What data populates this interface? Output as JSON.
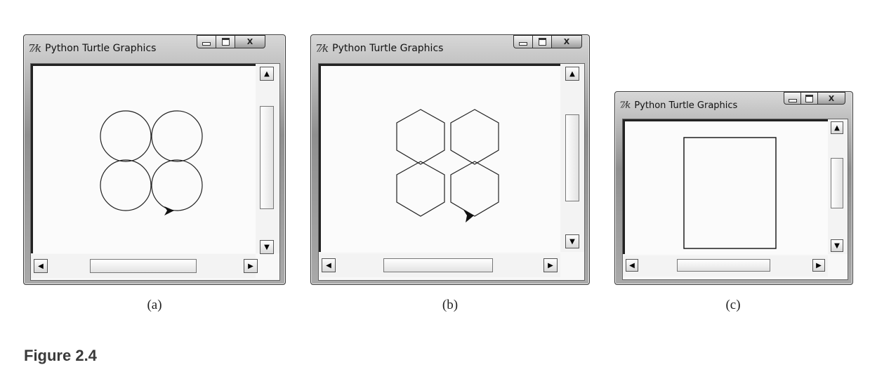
{
  "windows": [
    {
      "id": "a",
      "title": "Python Turtle Graphics",
      "icon": "tk-feather-icon",
      "caption": "(a)",
      "drawing": "four-circles"
    },
    {
      "id": "b",
      "title": "Python Turtle Graphics",
      "icon": "tk-feather-icon",
      "caption": "(b)",
      "drawing": "four-hexagons"
    },
    {
      "id": "c",
      "title": "Python Turtle Graphics",
      "icon": "tk-feather-icon",
      "caption": "(c)",
      "drawing": "rectangle"
    }
  ],
  "tk_icon_glyph": "7⁄k",
  "controls": {
    "minimize": "minimize-icon",
    "maximize": "maximize-icon",
    "close_glyph": "X"
  },
  "scroll": {
    "up": "▲",
    "down": "▼",
    "left": "◀",
    "right": "▶"
  },
  "figure_label": "Figure 2.4"
}
